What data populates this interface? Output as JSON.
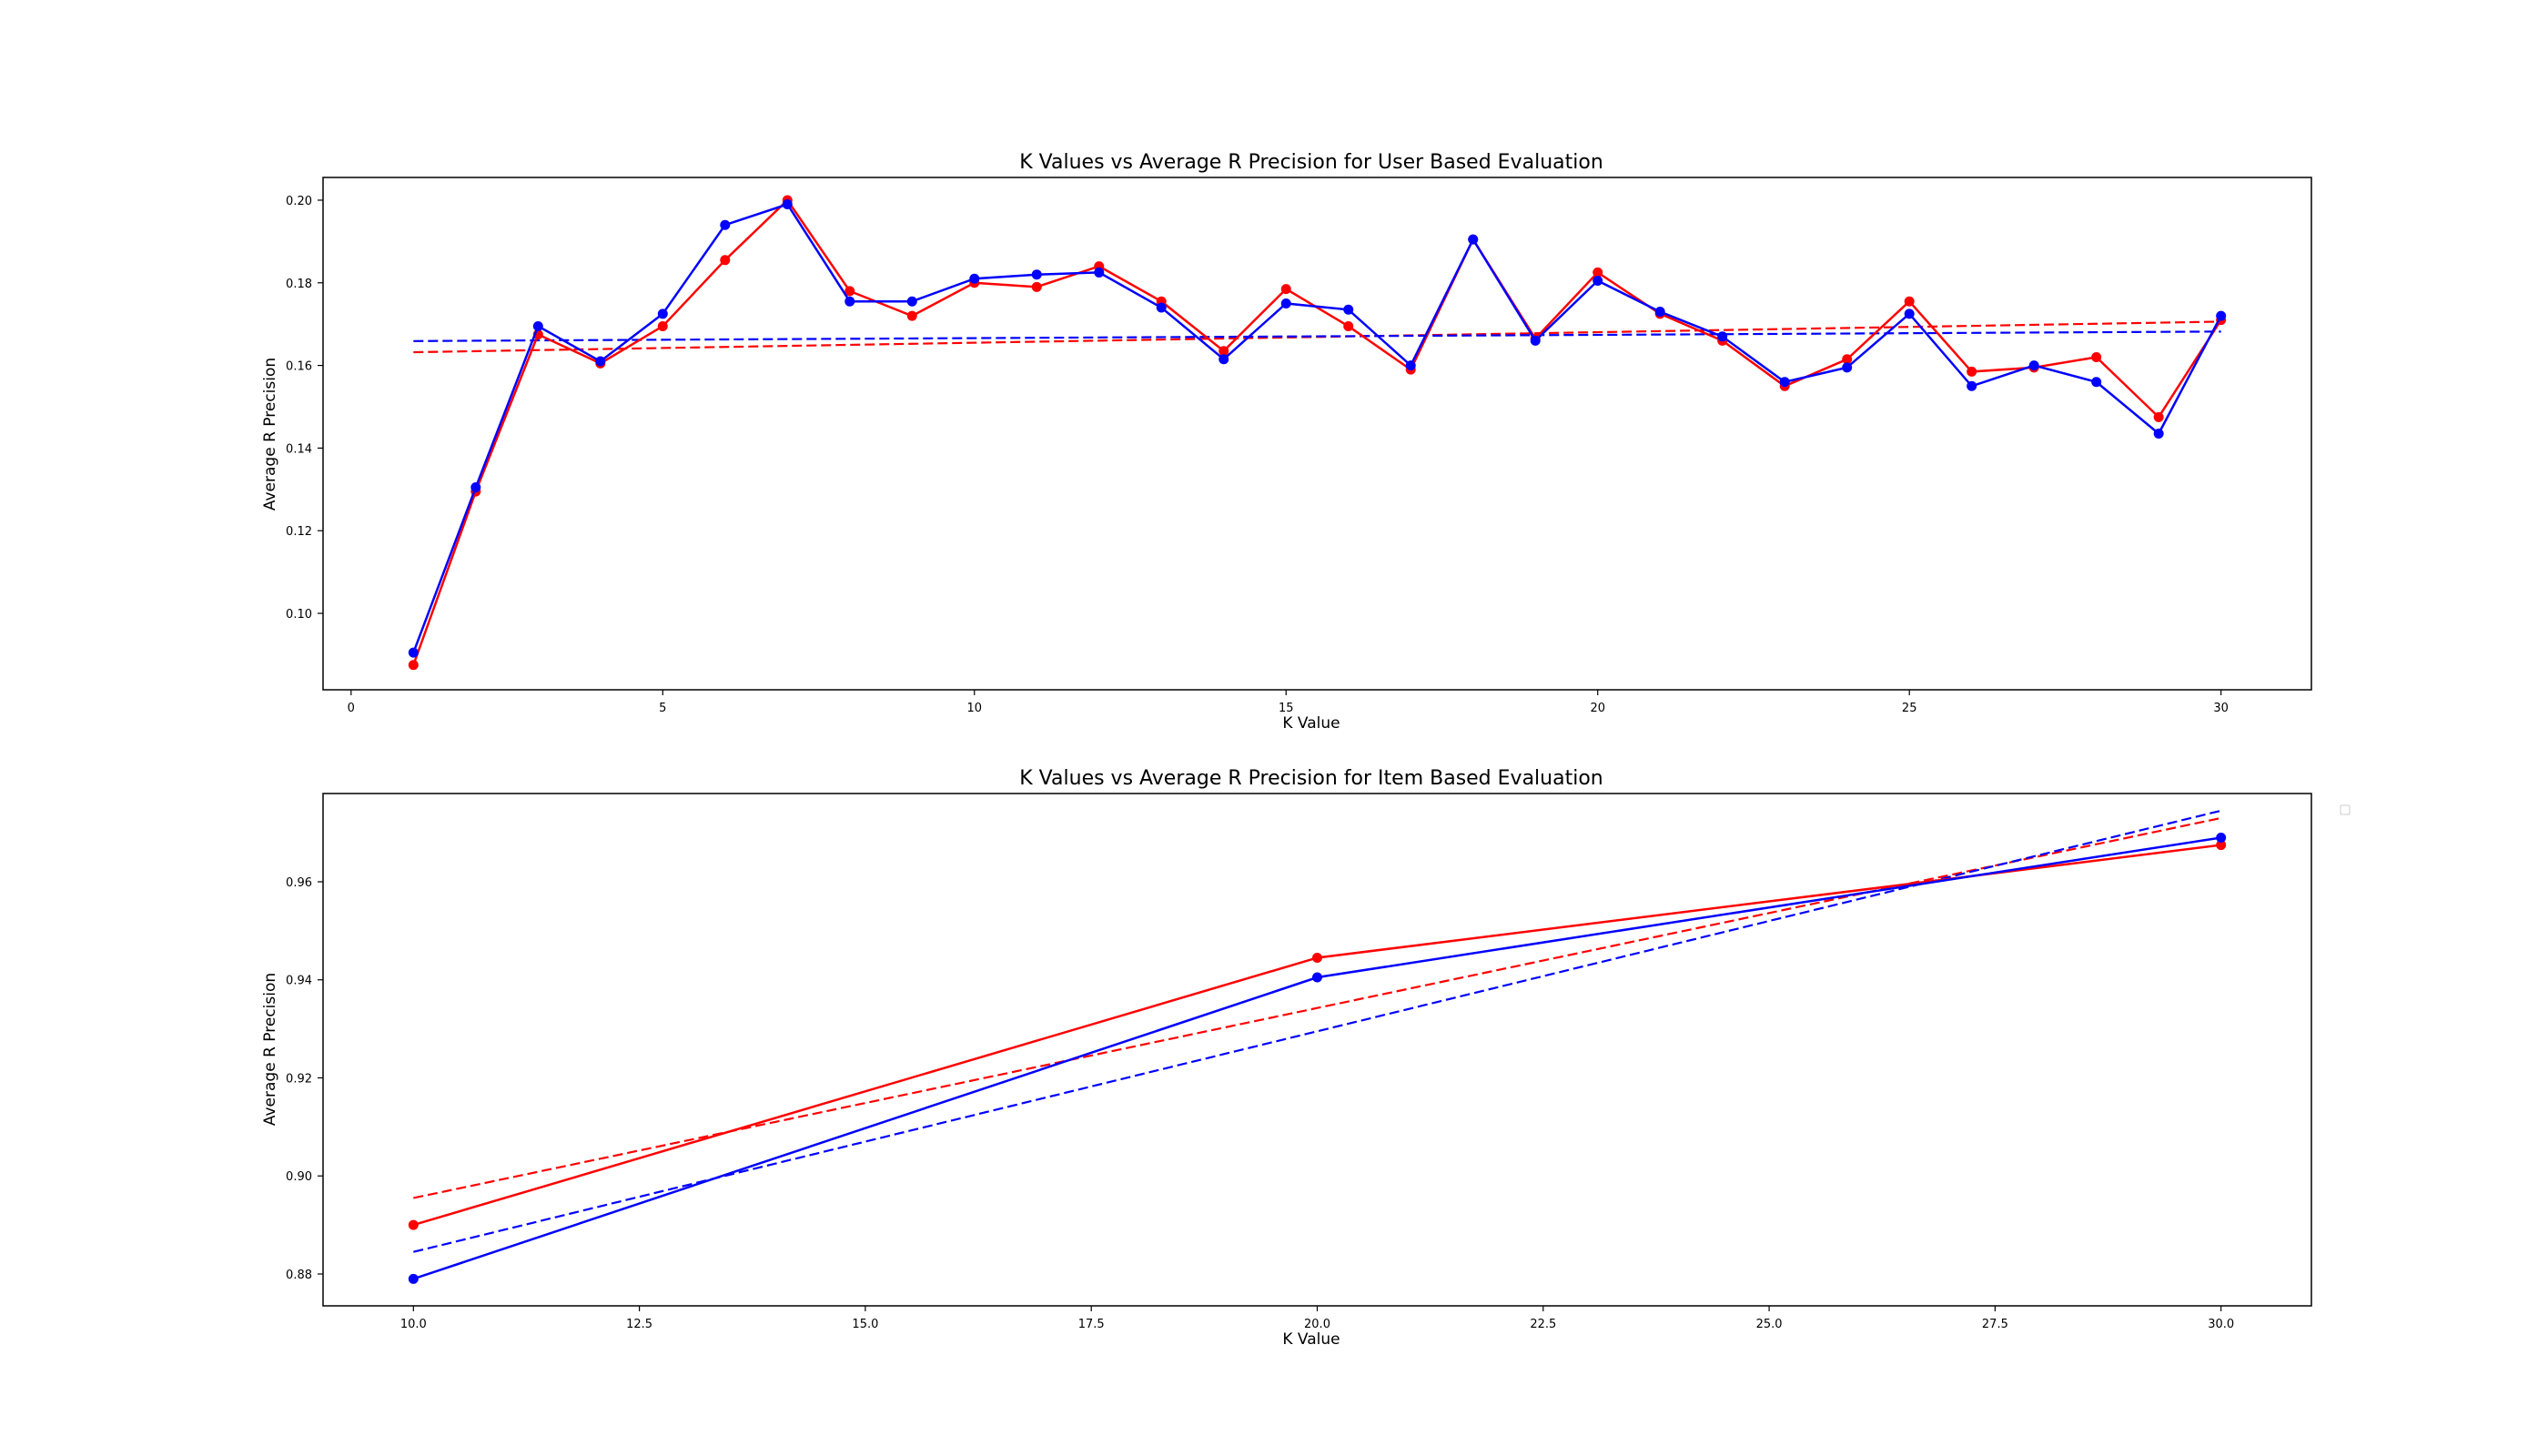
{
  "chart_data": [
    {
      "type": "line",
      "title": "K Values vs Average R Precision for User Based Evaluation",
      "xlabel": "K Value",
      "ylabel": "Average R Precision",
      "xlim": [
        -0.45,
        31.45
      ],
      "ylim": [
        0.0815,
        0.2055
      ],
      "xticks": [
        0,
        5,
        10,
        15,
        20,
        25,
        30
      ],
      "xtick_labels": [
        "0",
        "5",
        "10",
        "15",
        "20",
        "25",
        "30"
      ],
      "yticks": [
        0.1,
        0.12,
        0.14,
        0.16,
        0.18,
        0.2
      ],
      "ytick_labels": [
        "0.10",
        "0.12",
        "0.14",
        "0.16",
        "0.18",
        "0.20"
      ],
      "grid": false,
      "x": [
        1,
        2,
        3,
        4,
        5,
        6,
        7,
        8,
        9,
        10,
        11,
        12,
        13,
        14,
        15,
        16,
        17,
        18,
        19,
        20,
        21,
        22,
        23,
        24,
        25,
        26,
        27,
        28,
        29,
        30
      ],
      "series": [
        {
          "color": "#ff0000",
          "values": [
            0.0875,
            0.1295,
            0.1675,
            0.1605,
            0.1695,
            0.1855,
            0.2,
            0.178,
            0.172,
            0.18,
            0.179,
            0.184,
            0.1755,
            0.1635,
            0.1785,
            0.1695,
            0.159,
            0.1905,
            0.1665,
            0.1825,
            0.1725,
            0.166,
            0.155,
            0.1615,
            0.1755,
            0.1585,
            0.1595,
            0.162,
            0.1475,
            0.171
          ],
          "trend": [
            0.1632,
            0.1706
          ]
        },
        {
          "color": "#0000ff",
          "values": [
            0.0905,
            0.1305,
            0.1695,
            0.161,
            0.1725,
            0.194,
            0.199,
            0.1755,
            0.1755,
            0.181,
            0.182,
            0.1825,
            0.174,
            0.1615,
            0.175,
            0.1735,
            0.16,
            0.1905,
            0.166,
            0.1805,
            0.173,
            0.167,
            0.156,
            0.1595,
            0.1725,
            0.155,
            0.16,
            0.156,
            0.1435,
            0.172
          ],
          "trend": [
            0.1659,
            0.1682
          ]
        }
      ]
    },
    {
      "type": "line",
      "title": "K Values vs Average R Precision for Item Based Evaluation",
      "xlabel": "K Value",
      "ylabel": "Average R Precision",
      "xlim": [
        9.0,
        31.0
      ],
      "ylim": [
        0.8735,
        0.978
      ],
      "xticks": [
        10.0,
        12.5,
        15.0,
        17.5,
        20.0,
        22.5,
        25.0,
        27.5,
        30.0
      ],
      "xtick_labels": [
        "10.0",
        "12.5",
        "15.0",
        "17.5",
        "20.0",
        "22.5",
        "25.0",
        "27.5",
        "30.0"
      ],
      "yticks": [
        0.88,
        0.9,
        0.92,
        0.94,
        0.96
      ],
      "ytick_labels": [
        "0.88",
        "0.90",
        "0.92",
        "0.94",
        "0.96"
      ],
      "grid": false,
      "legend": "empty, upper right outside the axes",
      "x": [
        10,
        20,
        30
      ],
      "series": [
        {
          "color": "#ff0000",
          "values": [
            0.89,
            0.9445,
            0.9675
          ],
          "trend": [
            0.8955,
            0.973
          ]
        },
        {
          "color": "#0000ff",
          "values": [
            0.879,
            0.9405,
            0.969
          ],
          "trend": [
            0.8845,
            0.9745
          ]
        }
      ]
    }
  ]
}
